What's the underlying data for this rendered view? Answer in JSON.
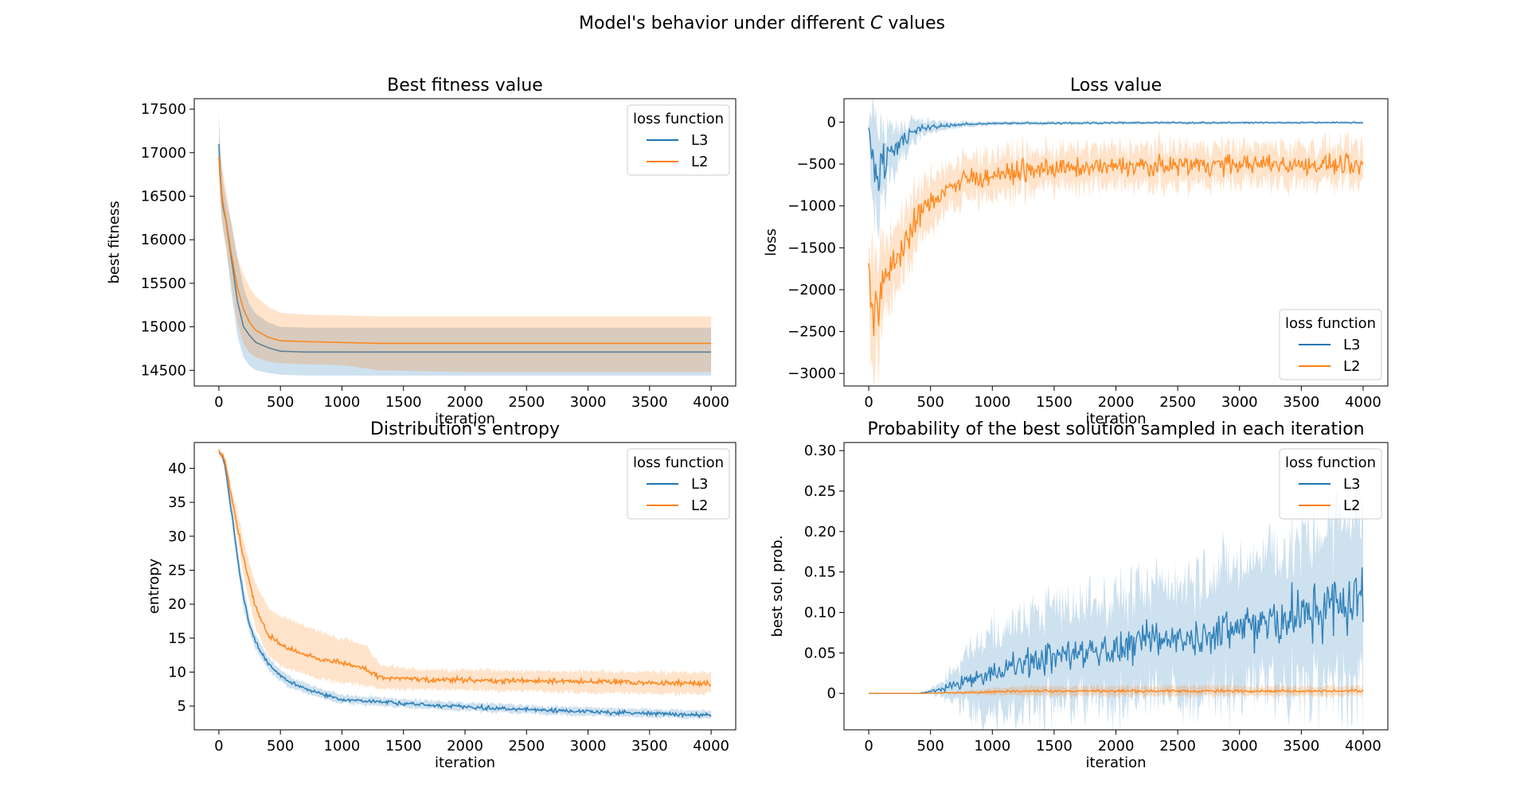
{
  "figure": {
    "suptitle_prefix": "Model's behavior under different ",
    "suptitle_symbol": "C",
    "suptitle_suffix": " values",
    "colors": {
      "L3": "#1f77b4",
      "L2": "#ff7f0e"
    }
  },
  "chart_data": [
    {
      "type": "line",
      "title": "Best fitness value",
      "xlabel": "iteration",
      "ylabel": "best fitness",
      "xlim": [
        -200,
        4200
      ],
      "ylim": [
        14320,
        17620
      ],
      "xticks": [
        0,
        500,
        1000,
        1500,
        2000,
        2500,
        3000,
        3500,
        4000
      ],
      "yticks": [
        14500,
        15000,
        15500,
        16000,
        16500,
        17000,
        17500
      ],
      "legend": {
        "title": "loss function",
        "placement": "upper right"
      },
      "series": [
        {
          "name": "L3",
          "color": "#1f77b4",
          "x": [
            0,
            10,
            30,
            60,
            100,
            150,
            200,
            250,
            300,
            400,
            500,
            700,
            1000,
            2000,
            4000
          ],
          "mean": [
            17100,
            16750,
            16400,
            16200,
            15800,
            15300,
            15000,
            14900,
            14820,
            14760,
            14720,
            14710,
            14710,
            14710,
            14710
          ],
          "lower": [
            16900,
            16450,
            16150,
            15900,
            15400,
            14900,
            14650,
            14550,
            14500,
            14470,
            14450,
            14440,
            14440,
            14440,
            14440
          ],
          "upper": [
            17480,
            17100,
            16700,
            16450,
            16200,
            15800,
            15450,
            15250,
            15150,
            15050,
            15000,
            14990,
            14990,
            14990,
            14990
          ]
        },
        {
          "name": "L2",
          "color": "#ff7f0e",
          "x": [
            0,
            10,
            30,
            60,
            100,
            150,
            200,
            250,
            300,
            400,
            500,
            700,
            1000,
            1300,
            2000,
            4000
          ],
          "mean": [
            16950,
            16700,
            16450,
            16200,
            15850,
            15450,
            15200,
            15050,
            14960,
            14880,
            14840,
            14830,
            14820,
            14810,
            14810,
            14810
          ],
          "lower": [
            16750,
            16400,
            16150,
            15900,
            15500,
            15050,
            14800,
            14700,
            14650,
            14600,
            14580,
            14570,
            14560,
            14500,
            14480,
            14480
          ],
          "upper": [
            17200,
            17000,
            16800,
            16550,
            16200,
            15800,
            15600,
            15450,
            15350,
            15230,
            15160,
            15140,
            15130,
            15120,
            15120,
            15120
          ]
        }
      ]
    },
    {
      "type": "line",
      "title": "Loss value",
      "xlabel": "iteration",
      "ylabel": "loss",
      "xlim": [
        -200,
        4200
      ],
      "ylim": [
        -3150,
        280
      ],
      "xticks": [
        0,
        500,
        1000,
        1500,
        2000,
        2500,
        3000,
        3500,
        4000
      ],
      "yticks": [
        -3000,
        -2500,
        -2000,
        -1500,
        -1000,
        -500,
        0
      ],
      "legend": {
        "title": "loss function",
        "placement": "lower right"
      },
      "series": [
        {
          "name": "L3",
          "color": "#1f77b4",
          "x": [
            0,
            20,
            40,
            60,
            80,
            100,
            150,
            200,
            300,
            400,
            500,
            700,
            1000,
            2000,
            4000
          ],
          "mean": [
            -50,
            -300,
            -550,
            -620,
            -580,
            -500,
            -380,
            -300,
            -180,
            -100,
            -60,
            -30,
            -15,
            -8,
            -5
          ],
          "noise": [
            20,
            200,
            250,
            250,
            220,
            200,
            150,
            120,
            80,
            50,
            30,
            15,
            10,
            8,
            6
          ]
        },
        {
          "name": "L2",
          "color": "#ff7f0e",
          "x": [
            0,
            20,
            50,
            80,
            100,
            150,
            200,
            300,
            400,
            500,
            600,
            800,
            1000,
            1500,
            2000,
            2500,
            3000,
            4000
          ],
          "mean": [
            -1700,
            -2100,
            -2300,
            -2200,
            -2050,
            -1850,
            -1650,
            -1400,
            -1150,
            -950,
            -820,
            -680,
            -620,
            -560,
            -530,
            -510,
            -500,
            -520
          ],
          "noise": [
            120,
            300,
            300,
            250,
            220,
            200,
            180,
            160,
            150,
            140,
            120,
            110,
            110,
            100,
            100,
            100,
            100,
            100
          ]
        }
      ]
    },
    {
      "type": "line",
      "title": "Distribution's entropy",
      "xlabel": "iteration",
      "ylabel": "entropy",
      "xlim": [
        -200,
        4200
      ],
      "ylim": [
        1.5,
        43.8
      ],
      "xticks": [
        0,
        500,
        1000,
        1500,
        2000,
        2500,
        3000,
        3500,
        4000
      ],
      "yticks": [
        5,
        10,
        15,
        20,
        25,
        30,
        35,
        40
      ],
      "legend": {
        "title": "loss function",
        "placement": "upper right"
      },
      "series": [
        {
          "name": "L3",
          "color": "#1f77b4",
          "x": [
            0,
            25,
            50,
            100,
            150,
            200,
            250,
            300,
            400,
            500,
            600,
            800,
            1000,
            1500,
            2000,
            2500,
            3000,
            3500,
            4000
          ],
          "mean": [
            42.3,
            42,
            40.5,
            34,
            27,
            21,
            17,
            14.3,
            11.3,
            9.5,
            8.3,
            7,
            6,
            5.4,
            4.9,
            4.5,
            4.2,
            3.9,
            3.7
          ],
          "lower": [
            42,
            41.5,
            39.5,
            32.5,
            25.5,
            19.5,
            15.8,
            13.3,
            10.4,
            8.7,
            7.5,
            6.3,
            5.4,
            4.8,
            4.3,
            3.9,
            3.6,
            3.3,
            3.1
          ],
          "upper": [
            42.5,
            42.3,
            41.2,
            35.5,
            28.5,
            22.5,
            18.2,
            15.3,
            12.2,
            10.3,
            9.1,
            7.7,
            6.6,
            6,
            5.5,
            5.1,
            4.8,
            4.5,
            4.3
          ],
          "noise": 0.25
        },
        {
          "name": "L2",
          "color": "#ff7f0e",
          "x": [
            0,
            25,
            50,
            100,
            150,
            200,
            250,
            300,
            400,
            500,
            600,
            800,
            1000,
            1200,
            1300,
            1500,
            2000,
            2500,
            3000,
            3500,
            4000
          ],
          "mean": [
            42.3,
            42,
            41,
            36,
            31.5,
            27,
            23,
            19.5,
            15.5,
            14,
            13.3,
            12,
            11.3,
            10.5,
            9.3,
            9,
            8.8,
            8.7,
            8.6,
            8.4,
            8.3
          ],
          "lower": [
            42,
            41.5,
            40,
            34.5,
            29.5,
            24.5,
            20,
            16.5,
            12.5,
            11,
            10.3,
            9,
            8.5,
            8,
            7.5,
            7.5,
            7.4,
            7.2,
            7,
            6.9,
            6.8
          ],
          "upper": [
            42.5,
            42.3,
            41.8,
            37.5,
            33.5,
            29.5,
            26,
            23,
            19.5,
            18.2,
            17.5,
            16,
            15,
            13.8,
            11.2,
            10.5,
            10.3,
            10.2,
            10.1,
            10,
            9.9
          ],
          "noise": 0.35
        }
      ]
    },
    {
      "type": "line",
      "title": "Probability of the best solution sampled in each iteration",
      "xlabel": "iteration",
      "ylabel": "best sol. prob.",
      "xlim": [
        -200,
        4200
      ],
      "ylim": [
        -0.045,
        0.31
      ],
      "xticks": [
        0,
        500,
        1000,
        1500,
        2000,
        2500,
        3000,
        3500,
        4000
      ],
      "yticks": [
        0.0,
        0.05,
        0.1,
        0.15,
        0.2,
        0.25,
        0.3
      ],
      "legend": {
        "title": "loss function",
        "placement": "upper right"
      },
      "series": [
        {
          "name": "L3",
          "color": "#1f77b4",
          "x": [
            0,
            400,
            500,
            600,
            700,
            800,
            900,
            1000,
            1200,
            1500,
            2000,
            2500,
            3000,
            3500,
            4000
          ],
          "mean": [
            0,
            0,
            0.002,
            0.005,
            0.01,
            0.015,
            0.02,
            0.025,
            0.035,
            0.045,
            0.055,
            0.07,
            0.08,
            0.095,
            0.12
          ],
          "noise": [
            0,
            0,
            0.002,
            0.004,
            0.006,
            0.008,
            0.01,
            0.012,
            0.015,
            0.018,
            0.02,
            0.022,
            0.025,
            0.03,
            0.035
          ],
          "band": [
            0,
            0,
            0.003,
            0.01,
            0.02,
            0.035,
            0.045,
            0.05,
            0.055,
            0.06,
            0.065,
            0.07,
            0.08,
            0.09,
            0.11
          ]
        },
        {
          "name": "L2",
          "color": "#ff7f0e",
          "x": [
            0,
            400,
            800,
            1000,
            1300,
            2000,
            3000,
            4000
          ],
          "mean": [
            0,
            0,
            0.001,
            0.002,
            0.003,
            0.003,
            0.003,
            0.003
          ],
          "noise": [
            0,
            0,
            0.001,
            0.001,
            0.0015,
            0.0015,
            0.0015,
            0.0015
          ],
          "band": [
            0,
            0,
            0.002,
            0.004,
            0.006,
            0.006,
            0.006,
            0.006
          ]
        }
      ]
    }
  ]
}
